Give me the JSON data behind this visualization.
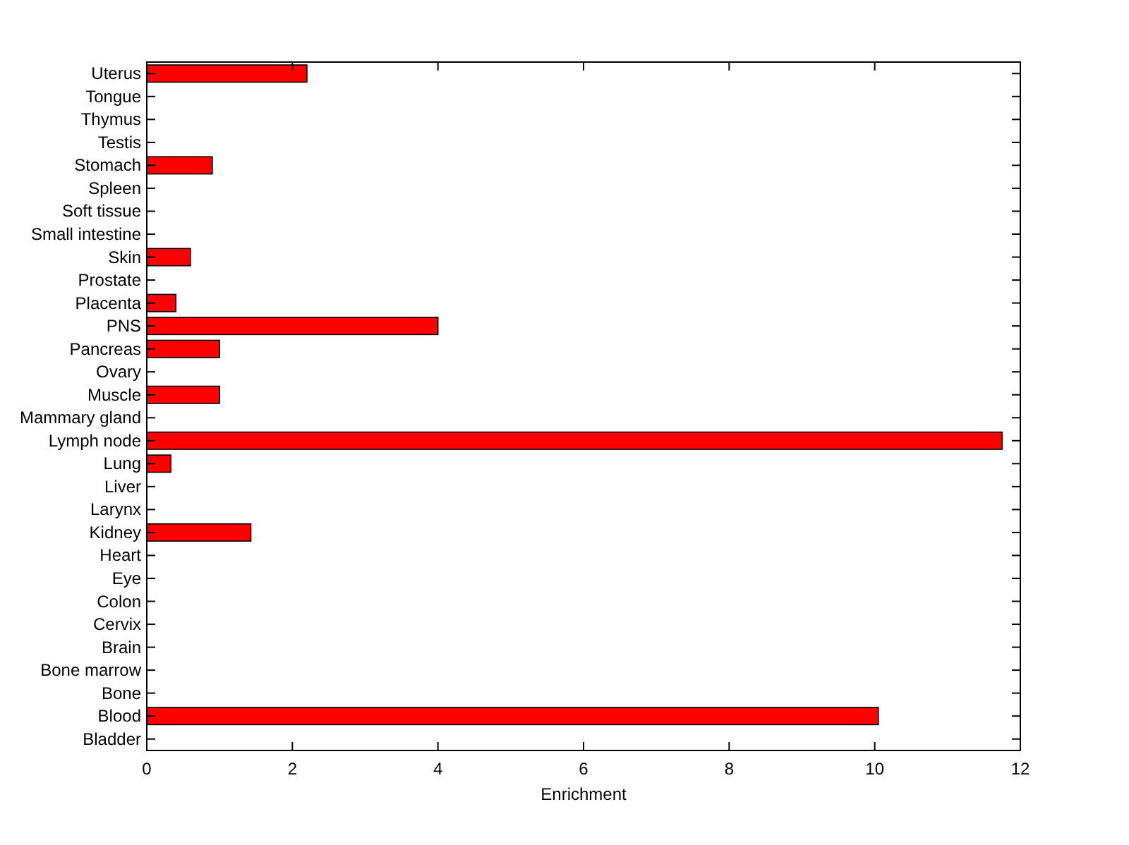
{
  "chart_data": {
    "type": "bar",
    "orientation": "horizontal",
    "xlabel": "Enrichment",
    "categories": [
      "Uterus",
      "Tongue",
      "Thymus",
      "Testis",
      "Stomach",
      "Spleen",
      "Soft tissue",
      "Small intestine",
      "Skin",
      "Prostate",
      "Placenta",
      "PNS",
      "Pancreas",
      "Ovary",
      "Muscle",
      "Mammary gland",
      "Lymph node",
      "Lung",
      "Liver",
      "Larynx",
      "Kidney",
      "Heart",
      "Eye",
      "Colon",
      "Cervix",
      "Brain",
      "Bone marrow",
      "Bone",
      "Blood",
      "Bladder"
    ],
    "values": [
      2.2,
      0,
      0,
      0,
      0.9,
      0,
      0,
      0,
      0.6,
      0,
      0.4,
      4.0,
      1.0,
      0,
      1.0,
      0,
      11.75,
      0.33,
      0,
      0,
      1.43,
      0,
      0,
      0,
      0,
      0,
      0,
      0,
      10.05,
      0
    ],
    "color": "#ff0000",
    "xlim": [
      0,
      12
    ],
    "xticks": [
      0,
      2,
      4,
      6,
      8,
      10,
      12
    ]
  }
}
